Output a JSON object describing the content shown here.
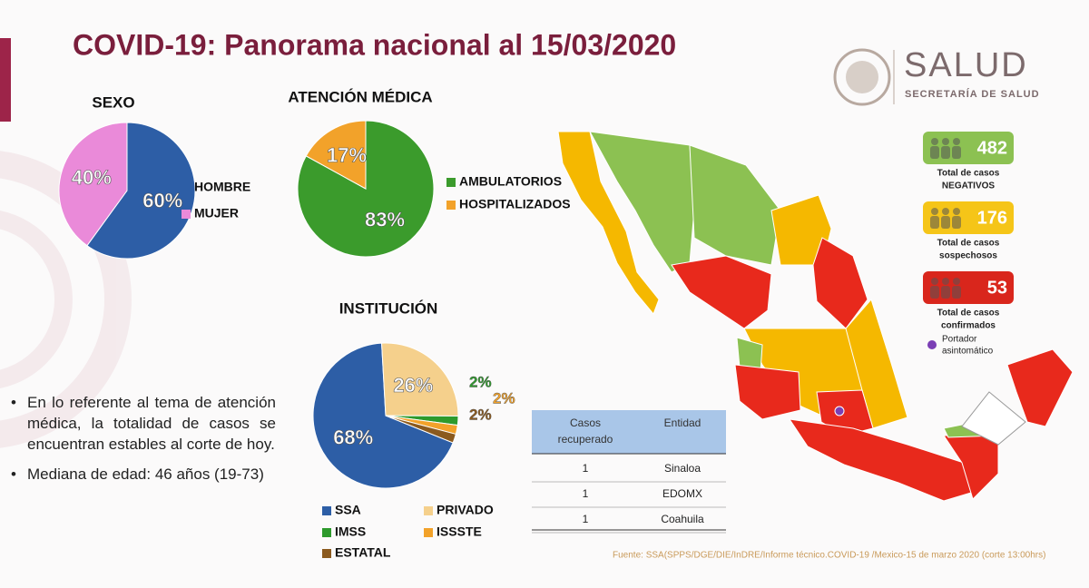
{
  "header": {
    "title": "COVID-19: Panorama nacional al 15/03/2020"
  },
  "logo": {
    "name": "SALUD",
    "subtitle": "SECRETARÍA DE SALUD"
  },
  "chart_data": [
    {
      "type": "pie",
      "title": "SEXO",
      "categories": [
        "HOMBRE",
        "MUJER"
      ],
      "values": [
        60,
        40
      ],
      "value_labels": [
        "60%",
        "40%"
      ],
      "colors": [
        "#2d5ea6",
        "#ea8ad9"
      ]
    },
    {
      "type": "pie",
      "title": "ATENCIÓN MÉDICA",
      "categories": [
        "AMBULATORIOS",
        "HOSPITALIZADOS"
      ],
      "values": [
        83,
        17
      ],
      "value_labels": [
        "83%",
        "17%"
      ],
      "colors": [
        "#3b9b2c",
        "#f2a22a"
      ]
    },
    {
      "type": "pie",
      "title": "INSTITUCIÓN",
      "categories": [
        "SSA",
        "PRIVADO",
        "IMSS",
        "ISSSTE",
        "ESTATAL"
      ],
      "values": [
        68,
        26,
        2,
        2,
        2
      ],
      "value_labels": [
        "68%",
        "26%",
        "2%",
        "2%",
        "2%"
      ],
      "colors": [
        "#2d5ea6",
        "#f5d08c",
        "#2e9a2c",
        "#f2a22a",
        "#8b5a1e"
      ]
    }
  ],
  "stats": [
    {
      "value": 482,
      "caption": [
        "Total de casos",
        "NEGATIVOS"
      ],
      "color": "#8cc152"
    },
    {
      "value": 176,
      "caption": [
        "Total de casos",
        "sospechosos"
      ],
      "color": "#f5c518"
    },
    {
      "value": 53,
      "caption": [
        "Total de casos",
        "confirmados"
      ],
      "color": "#d9261c"
    }
  ],
  "map_legend": {
    "label": [
      "Portador",
      "asintomático"
    ],
    "color": "#7b3fb5"
  },
  "table": {
    "header": [
      "Casos recuperado",
      "Entidad"
    ],
    "rows": [
      [
        1,
        "Sinaloa"
      ],
      [
        1,
        "EDOMX"
      ],
      [
        1,
        "Coahuila"
      ]
    ]
  },
  "bullets": [
    "En lo referente al tema de atención médica, la totalidad de casos se encuentran estables al corte de hoy.",
    "Mediana de edad: 46 años (19-73)"
  ],
  "source": "Fuente: SSA(SPPS/DGE/DIE/InDRE/Informe técnico.COVID-19 /Mexico-15 de marzo 2020 (corte 13:00hrs)"
}
